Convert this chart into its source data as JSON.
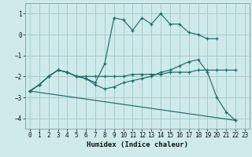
{
  "xlabel": "Humidex (Indice chaleur)",
  "bg_color": "#ceeaea",
  "grid_color": "#a8cccc",
  "line_color": "#1e6b6b",
  "xlim": [
    -0.5,
    23.5
  ],
  "ylim": [
    -4.5,
    1.5
  ],
  "yticks": [
    1,
    0,
    -1,
    -2,
    -3,
    -4
  ],
  "xticks": [
    0,
    1,
    2,
    3,
    4,
    5,
    6,
    7,
    8,
    9,
    10,
    11,
    12,
    13,
    14,
    15,
    16,
    17,
    18,
    19,
    20,
    21,
    22,
    23
  ],
  "series": [
    {
      "x": [
        0,
        1,
        2,
        3,
        4,
        5,
        6,
        7,
        8,
        9,
        10,
        11,
        12,
        13,
        14,
        15,
        16,
        17,
        18,
        19,
        20
      ],
      "y": [
        -2.7,
        -2.4,
        -2.0,
        -1.7,
        -1.8,
        -2.0,
        -2.1,
        -2.3,
        -1.4,
        0.8,
        0.7,
        0.2,
        0.8,
        0.5,
        1.0,
        0.5,
        0.5,
        0.1,
        0.0,
        -0.2,
        -0.2
      ]
    },
    {
      "x": [
        0,
        22
      ],
      "y": [
        -2.7,
        -4.1
      ]
    },
    {
      "x": [
        0,
        1,
        2,
        3,
        4,
        5,
        6,
        7,
        8,
        9,
        10,
        11,
        12,
        13,
        14,
        15,
        16,
        17,
        18,
        19,
        20,
        21,
        22
      ],
      "y": [
        -2.7,
        -2.4,
        -2.0,
        -1.7,
        -1.8,
        -2.0,
        -2.0,
        -2.0,
        -2.0,
        -2.0,
        -2.0,
        -1.9,
        -1.9,
        -1.9,
        -1.9,
        -1.8,
        -1.8,
        -1.8,
        -1.7,
        -1.7,
        -1.7,
        -1.7,
        -1.7
      ]
    },
    {
      "x": [
        0,
        1,
        2,
        3,
        4,
        5,
        6,
        7,
        8,
        9,
        10,
        11,
        12,
        13,
        14,
        15,
        16,
        17,
        18,
        19,
        20,
        21,
        22
      ],
      "y": [
        -2.7,
        -2.4,
        -2.0,
        -1.7,
        -1.8,
        -2.0,
        -2.1,
        -2.4,
        -2.6,
        -2.5,
        -2.3,
        -2.2,
        -2.1,
        -2.0,
        -1.8,
        -1.7,
        -1.5,
        -1.3,
        -1.2,
        -1.8,
        -3.0,
        -3.7,
        -4.1
      ]
    }
  ]
}
